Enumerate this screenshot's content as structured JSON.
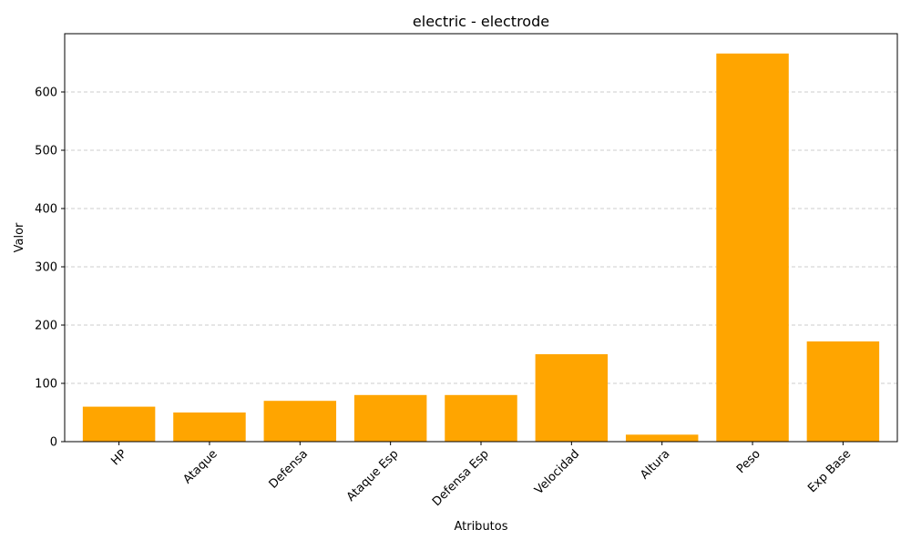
{
  "chart_data": {
    "type": "bar",
    "title": "electric - electrode",
    "xlabel": "Atributos",
    "ylabel": "Valor",
    "categories": [
      "HP",
      "Ataque",
      "Defensa",
      "Ataque Esp",
      "Defensa Esp",
      "Velocidad",
      "Altura",
      "Peso",
      "Exp Base"
    ],
    "values": [
      60,
      50,
      70,
      80,
      80,
      150,
      12,
      666,
      172
    ],
    "ylim": [
      0,
      700
    ],
    "yticks": [
      0,
      100,
      200,
      300,
      400,
      500,
      600
    ],
    "ytick_labels": [
      "0",
      "100",
      "200",
      "300",
      "400",
      "500",
      "600"
    ],
    "grid": "y-dashed",
    "bar_color": "#FFA500",
    "grid_color": "#cccccc",
    "axis_color": "#000000"
  }
}
